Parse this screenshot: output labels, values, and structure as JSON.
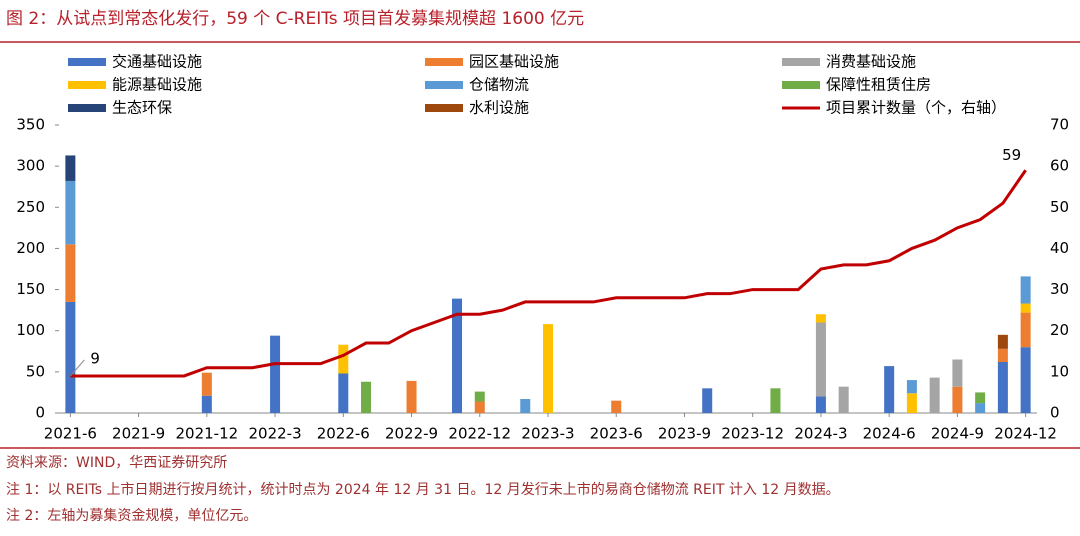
{
  "title": "图 2：从试点到常态化发行，59 个 C-REITs 项目首发募集规模超 1600 亿元",
  "source": "资料来源：WIND，华西证券研究所",
  "notes": [
    "注 1：以 REITs 上市日期进行按月统计，统计时点为 2024 年 12 月 31 日。12 月发行未上市的易商仓储物流 REIT 计入 12 月数据。",
    "注 2：左轴为募集资金规模，单位亿元。"
  ],
  "chart_data": {
    "type": "bar",
    "stacked": true,
    "categories": [
      "2021-6",
      null,
      null,
      "2021-9",
      null,
      null,
      "2021-12",
      null,
      null,
      "2022-3",
      null,
      null,
      "2022-6",
      null,
      null,
      "2022-9",
      null,
      null,
      "2022-12",
      null,
      null,
      "2023-3",
      null,
      null,
      "2023-6",
      null,
      null,
      "2023-9",
      null,
      null,
      "2023-12",
      null,
      null,
      "2024-3",
      null,
      null,
      "2024-6",
      null,
      null,
      "2024-9",
      null,
      null,
      "2024-12"
    ],
    "series": [
      {
        "name": "交通基础设施",
        "color": "#4472c4",
        "values": [
          135,
          null,
          null,
          null,
          null,
          null,
          21,
          null,
          null,
          94,
          null,
          null,
          48,
          null,
          null,
          null,
          null,
          139,
          null,
          null,
          null,
          null,
          null,
          null,
          null,
          null,
          null,
          null,
          30,
          null,
          null,
          null,
          null,
          20,
          null,
          null,
          57,
          null,
          null,
          null,
          null,
          62,
          80
        ]
      },
      {
        "name": "园区基础设施",
        "color": "#ed7d31",
        "values": [
          70,
          null,
          null,
          null,
          null,
          null,
          28,
          null,
          null,
          null,
          null,
          null,
          null,
          null,
          null,
          39,
          null,
          null,
          14,
          null,
          null,
          null,
          null,
          null,
          15,
          null,
          null,
          null,
          null,
          null,
          null,
          null,
          null,
          null,
          null,
          null,
          null,
          null,
          null,
          32,
          null,
          16,
          42
        ]
      },
      {
        "name": "消费基础设施",
        "color": "#a5a5a5",
        "values": [
          null,
          null,
          null,
          null,
          null,
          null,
          null,
          null,
          null,
          null,
          null,
          null,
          null,
          null,
          null,
          null,
          null,
          null,
          null,
          null,
          null,
          null,
          null,
          null,
          null,
          null,
          null,
          null,
          null,
          null,
          null,
          null,
          null,
          90,
          32,
          null,
          null,
          null,
          43,
          33,
          null,
          null,
          null
        ]
      },
      {
        "name": "能源基础设施",
        "color": "#ffc000",
        "values": [
          null,
          null,
          null,
          null,
          null,
          null,
          null,
          null,
          null,
          null,
          null,
          null,
          35,
          null,
          null,
          null,
          null,
          null,
          null,
          null,
          null,
          108,
          null,
          null,
          null,
          null,
          null,
          null,
          null,
          null,
          null,
          null,
          null,
          10,
          null,
          null,
          null,
          24,
          null,
          null,
          null,
          null,
          11
        ]
      },
      {
        "name": "仓储物流",
        "color": "#5b9bd5",
        "values": [
          77,
          null,
          null,
          null,
          null,
          null,
          null,
          null,
          null,
          null,
          null,
          null,
          null,
          null,
          null,
          null,
          null,
          null,
          null,
          null,
          17,
          null,
          null,
          null,
          null,
          null,
          null,
          null,
          null,
          null,
          null,
          null,
          null,
          null,
          null,
          null,
          null,
          16,
          null,
          null,
          12,
          null,
          33
        ]
      },
      {
        "name": "保障性租赁住房",
        "color": "#70ad47",
        "values": [
          null,
          null,
          null,
          null,
          null,
          null,
          null,
          null,
          null,
          null,
          null,
          null,
          null,
          38,
          null,
          null,
          null,
          null,
          12,
          null,
          null,
          null,
          null,
          null,
          null,
          null,
          null,
          null,
          null,
          null,
          null,
          30,
          null,
          null,
          null,
          null,
          null,
          null,
          null,
          null,
          13,
          null,
          null
        ]
      },
      {
        "name": "生态环保",
        "color": "#264478",
        "values": [
          31,
          null,
          null,
          null,
          null,
          null,
          null,
          null,
          null,
          null,
          null,
          null,
          null,
          null,
          null,
          null,
          null,
          null,
          null,
          null,
          null,
          null,
          null,
          null,
          null,
          null,
          null,
          null,
          null,
          null,
          null,
          null,
          null,
          null,
          null,
          null,
          null,
          null,
          null,
          null,
          null,
          null,
          null
        ]
      },
      {
        "name": "水利设施",
        "color": "#9e480e",
        "values": [
          null,
          null,
          null,
          null,
          null,
          null,
          null,
          null,
          null,
          null,
          null,
          null,
          null,
          null,
          null,
          null,
          null,
          null,
          null,
          null,
          null,
          null,
          null,
          null,
          null,
          null,
          null,
          null,
          null,
          null,
          null,
          null,
          null,
          null,
          null,
          null,
          null,
          null,
          null,
          null,
          null,
          17,
          null
        ]
      },
      {
        "name": "项目累计数量（个，右轴）",
        "color": "#c00000",
        "type": "line",
        "axis": "y2",
        "values": [
          9,
          9,
          9,
          9,
          9,
          9,
          11,
          11,
          11,
          12,
          12,
          12,
          14,
          17,
          17,
          20,
          22,
          24,
          24,
          25,
          27,
          27,
          27,
          27,
          28,
          28,
          28,
          28,
          29,
          29,
          30,
          30,
          30,
          35,
          36,
          36,
          37,
          40,
          42,
          45,
          47,
          51,
          59
        ]
      }
    ],
    "ylim": [
      0,
      350
    ],
    "yticks": [
      0,
      50,
      100,
      150,
      200,
      250,
      300,
      350
    ],
    "y2lim": [
      0,
      70
    ],
    "y2ticks": [
      0,
      10,
      20,
      30,
      40,
      50,
      60,
      70
    ]
  }
}
